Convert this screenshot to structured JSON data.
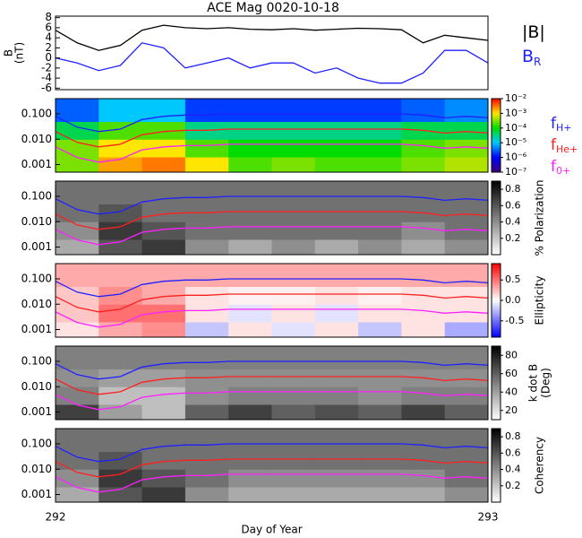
{
  "chart_data": [
    {
      "type": "line",
      "title": "ACE Mag 0020-10-18",
      "ylabel": [
        "B",
        "(nT)"
      ],
      "x": [
        292,
        292.05,
        292.1,
        292.15,
        292.2,
        292.25,
        292.3,
        292.35,
        292.4,
        292.45,
        292.5,
        292.55,
        292.6,
        292.65,
        292.7,
        292.75,
        292.8,
        292.85,
        292.9,
        292.95,
        293
      ],
      "series": [
        {
          "name": "|B|",
          "color": "#000000",
          "values": [
            5.5,
            3,
            1.5,
            2.5,
            5.5,
            6.5,
            6,
            5.8,
            6,
            5.7,
            5.6,
            5.8,
            5.5,
            5.7,
            5.9,
            5.8,
            5.6,
            3,
            4.5,
            4,
            3.5
          ]
        },
        {
          "name": "B",
          "name_sub": "R",
          "color": "#2020ff",
          "values": [
            0,
            -1,
            -2.5,
            -1.5,
            3,
            2,
            -2,
            -1,
            0,
            -2,
            -1,
            -1,
            -3,
            -2,
            -4,
            -5,
            -5,
            -3,
            1.5,
            1.5,
            -1
          ]
        }
      ],
      "xlim": [
        292,
        293
      ],
      "ylim": [
        -6.3,
        8.3
      ],
      "yticks": [
        -6,
        -4,
        -2,
        0,
        2,
        4,
        6,
        8
      ]
    },
    {
      "type": "spectrogram",
      "colormap": "rainbow",
      "zlog": true,
      "zlim": [
        1e-07,
        0.01
      ],
      "zticks": [
        {
          "value": 0.01,
          "label": "10⁻²"
        },
        {
          "value": 0.001,
          "label": "10⁻³"
        },
        {
          "value": 0.0001,
          "label": "10⁻⁴"
        },
        {
          "value": 1e-05,
          "label": "10⁻⁵"
        },
        {
          "value": 1e-06,
          "label": "10⁻⁶"
        },
        {
          "value": 1e-07,
          "label": "10⁻⁷"
        }
      ],
      "time_bins": [
        292,
        292.1,
        292.2,
        292.3,
        292.4,
        292.5,
        292.6,
        292.7,
        292.8,
        292.9,
        293
      ],
      "freq_bins": [
        0.0005,
        0.002,
        0.01,
        0.05,
        0.4
      ],
      "z": [
        [
          0.0003,
          0.002,
          0.003,
          0.001,
          0.0002,
          0.0003,
          0.0002,
          0.0002,
          0.0003,
          0.0005
        ],
        [
          0.0003,
          0.001,
          0.001,
          0.0002,
          0.0001,
          0.0001,
          0.0001,
          0.0001,
          0.0002,
          0.0003
        ],
        [
          5e-05,
          0.0002,
          0.0002,
          3e-05,
          3e-05,
          3e-05,
          3e-05,
          3e-05,
          5e-05,
          5e-05
        ],
        [
          3e-06,
          1e-05,
          1e-05,
          2e-06,
          2e-06,
          2e-06,
          2e-06,
          2e-06,
          3e-06,
          5e-06
        ]
      ],
      "x": [
        292,
        292.05,
        292.1,
        292.15,
        292.2,
        292.25,
        292.3,
        292.35,
        292.4,
        292.45,
        292.5,
        292.55,
        292.6,
        292.65,
        292.7,
        292.75,
        292.8,
        292.85,
        292.9,
        292.95,
        293
      ],
      "series": [
        {
          "name": "f",
          "name_sub": "H+",
          "color": "#2020ff",
          "values": [
            0.08,
            0.03,
            0.02,
            0.025,
            0.06,
            0.08,
            0.09,
            0.09,
            0.1,
            0.1,
            0.1,
            0.1,
            0.1,
            0.1,
            0.1,
            0.1,
            0.1,
            0.09,
            0.07,
            0.08,
            0.07
          ]
        },
        {
          "name": "f",
          "name_sub": "He+",
          "color": "#ff2020",
          "values": [
            0.02,
            0.0075,
            0.005,
            0.0063,
            0.015,
            0.02,
            0.0225,
            0.0225,
            0.025,
            0.025,
            0.025,
            0.025,
            0.025,
            0.025,
            0.025,
            0.025,
            0.025,
            0.0225,
            0.0175,
            0.02,
            0.0175
          ]
        },
        {
          "name": "f",
          "name_sub": "0+",
          "color": "#ff20ff",
          "values": [
            0.005,
            0.0019,
            0.00125,
            0.0016,
            0.0038,
            0.005,
            0.0056,
            0.0056,
            0.0063,
            0.0063,
            0.0063,
            0.0063,
            0.0063,
            0.0063,
            0.0063,
            0.0063,
            0.0063,
            0.0056,
            0.0044,
            0.005,
            0.0044
          ]
        }
      ],
      "xlim": [
        292,
        293
      ],
      "ylog": true,
      "ylim": [
        0.0005,
        0.4
      ],
      "yticks": [
        0.001,
        {
          "value": 0.01,
          "label": "0.010"
        },
        {
          "value": 0.1,
          "label": "0.100"
        }
      ]
    },
    {
      "type": "spectrogram",
      "colormap": "gray",
      "zlim": [
        0,
        0.9
      ],
      "zticks": [
        0.2,
        0.4,
        0.6,
        0.8
      ],
      "zlabel": [
        "% Polarization"
      ],
      "time_bins": [
        292,
        292.1,
        292.2,
        292.3,
        292.4,
        292.5,
        292.6,
        292.7,
        292.8,
        292.9,
        293
      ],
      "freq_bins": [
        0.0005,
        0.002,
        0.01,
        0.05,
        0.4
      ],
      "z": [
        [
          0.3,
          0.6,
          0.7,
          0.4,
          0.3,
          0.4,
          0.3,
          0.4,
          0.3,
          0.4
        ],
        [
          0.4,
          0.7,
          0.6,
          0.5,
          0.5,
          0.5,
          0.5,
          0.5,
          0.4,
          0.5
        ],
        [
          0.5,
          0.6,
          0.5,
          0.5,
          0.5,
          0.5,
          0.5,
          0.5,
          0.5,
          0.5
        ],
        [
          0.5,
          0.5,
          0.5,
          0.5,
          0.5,
          0.5,
          0.5,
          0.5,
          0.5,
          0.5
        ]
      ],
      "xlim": [
        292,
        293
      ],
      "ylog": true,
      "ylim": [
        0.0005,
        0.4
      ],
      "yticks": [
        0.001,
        {
          "value": 0.01,
          "label": "0.010"
        },
        {
          "value": 0.1,
          "label": "0.100"
        }
      ]
    },
    {
      "type": "spectrogram",
      "colormap": "bwr",
      "zlim": [
        -0.9,
        0.9
      ],
      "zticks": [
        -0.5,
        {
          "value": 0,
          "label": "0.0"
        },
        0.5
      ],
      "zlabel": [
        "Ellipticity"
      ],
      "time_bins": [
        292,
        292.1,
        292.2,
        292.3,
        292.4,
        292.5,
        292.6,
        292.7,
        292.8,
        292.9,
        293
      ],
      "freq_bins": [
        0.0005,
        0.002,
        0.01,
        0.05,
        0.4
      ],
      "z": [
        [
          0.1,
          0.3,
          0.4,
          -0.2,
          0.1,
          -0.1,
          0.1,
          -0.2,
          0.1,
          -0.3
        ],
        [
          0.2,
          0.5,
          0.5,
          0.1,
          -0.1,
          0.1,
          -0.1,
          0.1,
          0.1,
          0.1
        ],
        [
          0.2,
          0.4,
          0.3,
          0.1,
          0.05,
          0.05,
          0.1,
          0.05,
          0.1,
          0.1
        ],
        [
          0.3,
          0.3,
          0.3,
          0.3,
          0.3,
          0.3,
          0.3,
          0.3,
          0.3,
          0.3
        ]
      ],
      "xlim": [
        292,
        293
      ],
      "ylog": true,
      "ylim": [
        0.0005,
        0.4
      ],
      "yticks": [
        0.001,
        {
          "value": 0.01,
          "label": "0.010"
        },
        {
          "value": 0.1,
          "label": "0.100"
        }
      ]
    },
    {
      "type": "spectrogram",
      "colormap": "gray",
      "zlim": [
        10,
        90
      ],
      "zticks": [
        20,
        40,
        60,
        80
      ],
      "zlabel": [
        "k dot B",
        "(Deg)"
      ],
      "time_bins": [
        292,
        292.1,
        292.2,
        292.3,
        292.4,
        292.5,
        292.6,
        292.7,
        292.8,
        292.9,
        293
      ],
      "freq_bins": [
        0.0005,
        0.002,
        0.01,
        0.05,
        0.4
      ],
      "z": [
        [
          70,
          40,
          30,
          60,
          70,
          60,
          65,
          60,
          70,
          60
        ],
        [
          50,
          30,
          30,
          45,
          50,
          50,
          50,
          45,
          50,
          50
        ],
        [
          45,
          40,
          40,
          45,
          45,
          45,
          45,
          45,
          45,
          45
        ],
        [
          50,
          50,
          50,
          50,
          50,
          50,
          50,
          50,
          50,
          50
        ]
      ],
      "xlim": [
        292,
        293
      ],
      "ylog": true,
      "ylim": [
        0.0005,
        0.4
      ],
      "yticks": [
        0.001,
        {
          "value": 0.01,
          "label": "0.010"
        },
        {
          "value": 0.1,
          "label": "0.100"
        }
      ]
    },
    {
      "type": "spectrogram",
      "colormap": "gray",
      "zlim": [
        0,
        0.9
      ],
      "zticks": [
        0.2,
        0.4,
        0.6,
        0.8
      ],
      "zlabel": [
        "Coherency"
      ],
      "time_bins": [
        292,
        292.1,
        292.2,
        292.3,
        292.4,
        292.5,
        292.6,
        292.7,
        292.8,
        292.9,
        293
      ],
      "freq_bins": [
        0.0005,
        0.002,
        0.01,
        0.05,
        0.4
      ],
      "z": [
        [
          0.3,
          0.6,
          0.7,
          0.4,
          0.3,
          0.3,
          0.3,
          0.3,
          0.3,
          0.4
        ],
        [
          0.4,
          0.7,
          0.6,
          0.5,
          0.4,
          0.4,
          0.4,
          0.4,
          0.4,
          0.5
        ],
        [
          0.5,
          0.6,
          0.5,
          0.5,
          0.5,
          0.5,
          0.5,
          0.5,
          0.5,
          0.5
        ],
        [
          0.5,
          0.5,
          0.5,
          0.5,
          0.5,
          0.5,
          0.5,
          0.5,
          0.5,
          0.5
        ]
      ],
      "xlim": [
        292,
        293
      ],
      "xlabel": "Day of Year",
      "xticks": [
        292,
        293
      ],
      "ylog": true,
      "ylim": [
        0.0005,
        0.4
      ],
      "yticks": [
        0.001,
        {
          "value": 0.01,
          "label": "0.010"
        },
        {
          "value": 0.1,
          "label": "0.100"
        }
      ]
    }
  ]
}
